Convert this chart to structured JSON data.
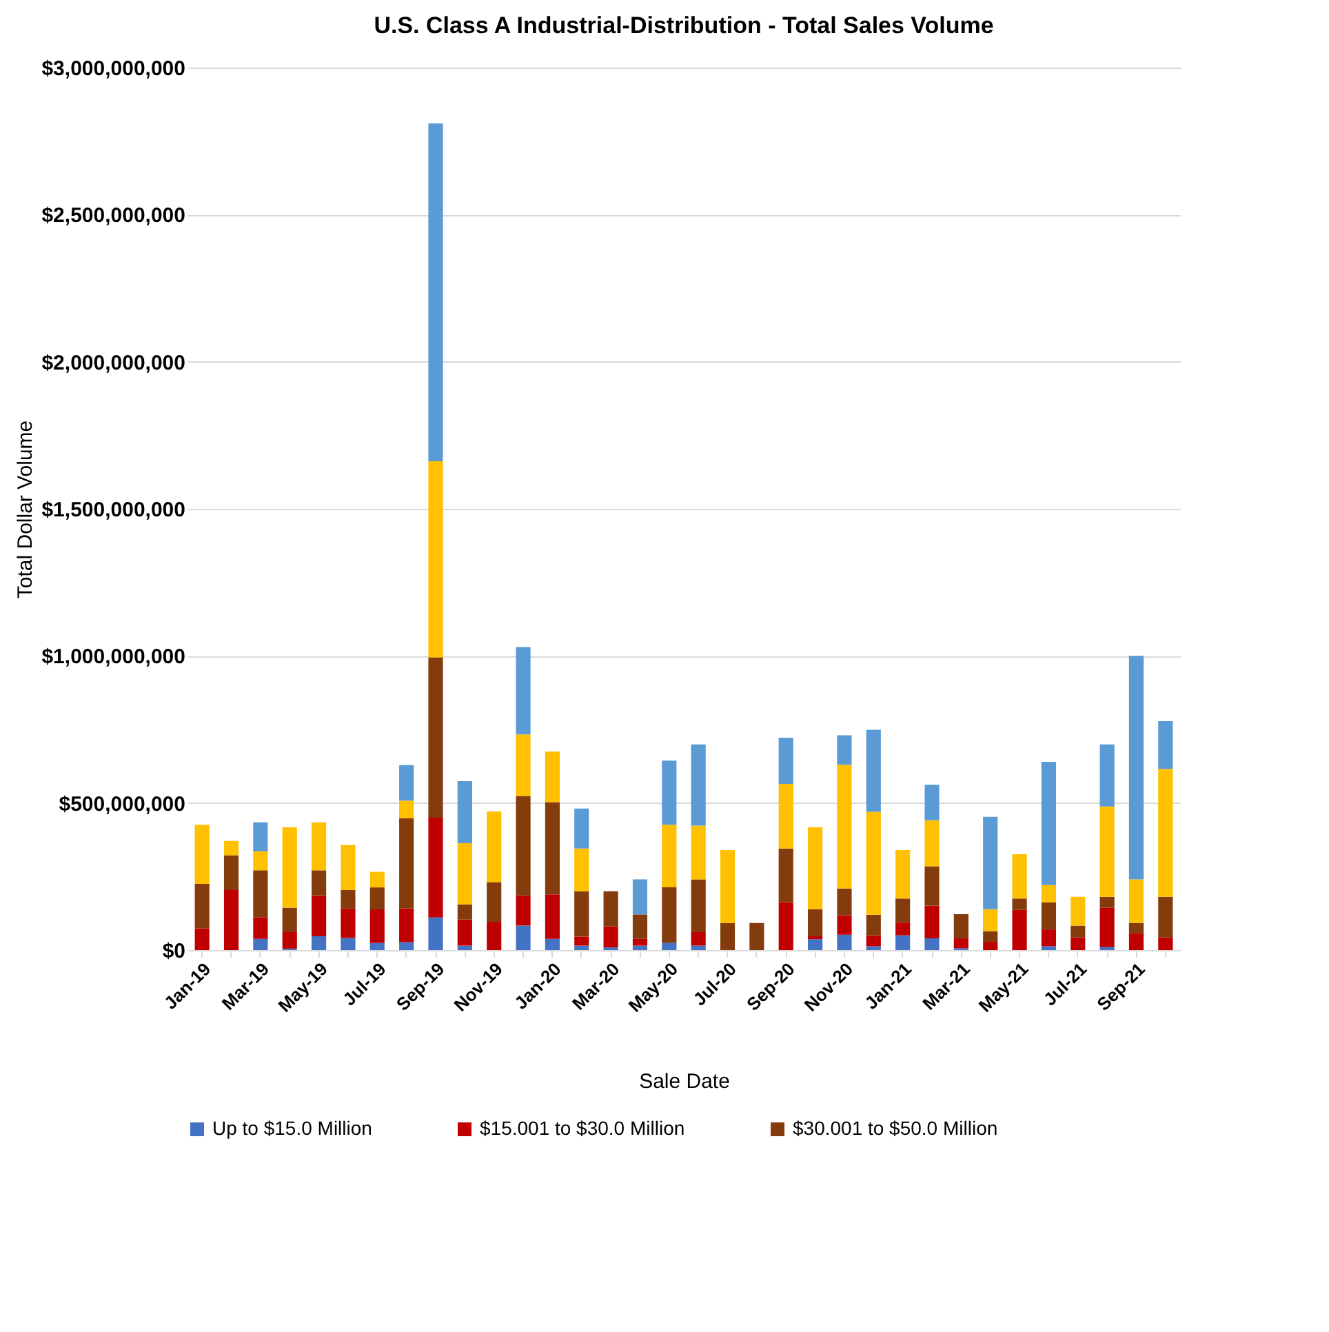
{
  "chart_data": {
    "type": "bar",
    "title": "U.S. Class A Industrial-Distribution - Total Sales Volume",
    "xlabel": "Sale Date",
    "ylabel": "Total Dollar Volume",
    "categories": [
      "Jan-19",
      null,
      "Mar-19",
      null,
      "May-19",
      null,
      "Jul-19",
      null,
      "Sep-19",
      null,
      "Nov-19",
      null,
      "Jan-20",
      null,
      "Mar-20",
      null,
      "May-20",
      null,
      "Jul-20",
      null,
      "Sep-20",
      null,
      "Nov-20",
      null,
      "Jan-21",
      null,
      "Mar-21",
      null,
      "May-21",
      null,
      "Jul-21",
      null,
      "Sep-21",
      null
    ],
    "stacked": true,
    "grid": "y",
    "legend": "bottom",
    "ylim": [
      0,
      3000000000
    ],
    "yticks": [
      {
        "value": 0,
        "label": "$0"
      },
      {
        "value": 500000000,
        "label": "$500,000,000"
      },
      {
        "value": 1000000000,
        "label": "$1,000,000,000"
      },
      {
        "value": 1500000000,
        "label": "$1,500,000,000"
      },
      {
        "value": 2000000000,
        "label": "$2,000,000,000"
      },
      {
        "value": 2500000000,
        "label": "$2,500,000,000"
      },
      {
        "value": 3000000000,
        "label": "$3,000,000,000"
      }
    ],
    "series": [
      {
        "name": "Up to $15.0 Million",
        "color": "#4472c4",
        "values": [
          0,
          0,
          38000000,
          5000000,
          47000000,
          41000000,
          24000000,
          27000000,
          111000000,
          15000000,
          0,
          83000000,
          38000000,
          15000000,
          9000000,
          15000000,
          24000000,
          15000000,
          0,
          0,
          0,
          37000000,
          52000000,
          13000000,
          50000000,
          40000000,
          6000000,
          0,
          0,
          13000000,
          0,
          10000000,
          0,
          0
        ]
      },
      {
        "name": "$15.001 to $30.0 Million",
        "color": "#c00000",
        "values": [
          74000000,
          204000000,
          73000000,
          56000000,
          139000000,
          100000000,
          114000000,
          115000000,
          339000000,
          89000000,
          96000000,
          103000000,
          151000000,
          31000000,
          71000000,
          23000000,
          0,
          46000000,
          0,
          0,
          163000000,
          10000000,
          66000000,
          37000000,
          45000000,
          111000000,
          34000000,
          28000000,
          137000000,
          57000000,
          43000000,
          134000000,
          58000000,
          43000000
        ]
      },
      {
        "name": "$30.001 to $50.0 Million",
        "color": "#843c0c",
        "values": [
          151000000,
          118000000,
          160000000,
          83000000,
          85000000,
          63000000,
          75000000,
          306000000,
          545000000,
          51000000,
          135000000,
          338000000,
          314000000,
          154000000,
          120000000,
          83000000,
          189000000,
          179000000,
          92000000,
          92000000,
          182000000,
          92000000,
          91000000,
          70000000,
          80000000,
          134000000,
          82000000,
          36000000,
          38000000,
          92000000,
          40000000,
          37000000,
          34000000,
          138000000
        ]
      },
      {
        "color": "#ffc000",
        "values": [
          201000000,
          49000000,
          65000000,
          273000000,
          163000000,
          153000000,
          53000000,
          60000000,
          667000000,
          208000000,
          240000000,
          209000000,
          172000000,
          145000000,
          0,
          0,
          213000000,
          183000000,
          248000000,
          0,
          220000000,
          278000000,
          421000000,
          350000000,
          165000000,
          156000000,
          0,
          75000000,
          151000000,
          59000000,
          98000000,
          307000000,
          148000000,
          435000000
        ]
      },
      {
        "color": "#5b9bd5",
        "values": [
          0,
          0,
          98000000,
          0,
          0,
          0,
          0,
          121000000,
          1148000000,
          211000000,
          0,
          297000000,
          0,
          136000000,
          0,
          119000000,
          218000000,
          276000000,
          0,
          0,
          157000000,
          0,
          100000000,
          279000000,
          0,
          121000000,
          0,
          314000000,
          0,
          419000000,
          0,
          211000000,
          760000000,
          162000000
        ]
      }
    ]
  }
}
